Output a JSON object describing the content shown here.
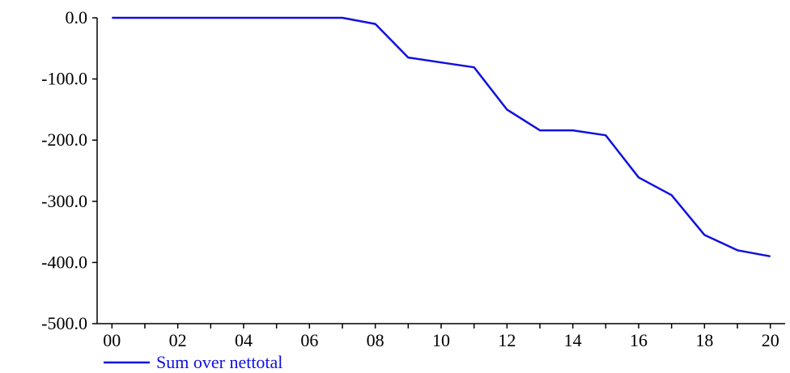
{
  "chart_data": {
    "type": "line",
    "x_ticks": [
      "00",
      "02",
      "04",
      "06",
      "08",
      "10",
      "12",
      "14",
      "16",
      "18",
      "20"
    ],
    "y_ticks": [
      "0.0",
      "-100.0",
      "-200.0",
      "-300.0",
      "-400.0",
      "-500.0"
    ],
    "y_tick_values": [
      0,
      -100,
      -200,
      -300,
      -400,
      -500
    ],
    "ylim": [
      -500,
      0
    ],
    "xlim": [
      -0.45,
      20.45
    ],
    "grid": false,
    "legend_position": "bottom-left",
    "series": [
      {
        "name": "Sum over nettotal",
        "color": "#1010e0",
        "x": [
          0,
          1,
          2,
          3,
          4,
          5,
          6,
          7,
          8,
          9,
          10,
          11,
          12,
          13,
          14,
          15,
          16,
          17,
          18,
          19,
          20
        ],
        "y": [
          0,
          0,
          0,
          0,
          0,
          0,
          0,
          0,
          -10,
          -65,
          -73,
          -81,
          -150,
          -184,
          -184,
          -192,
          -261,
          -290,
          -355,
          -380,
          -390
        ]
      }
    ]
  }
}
